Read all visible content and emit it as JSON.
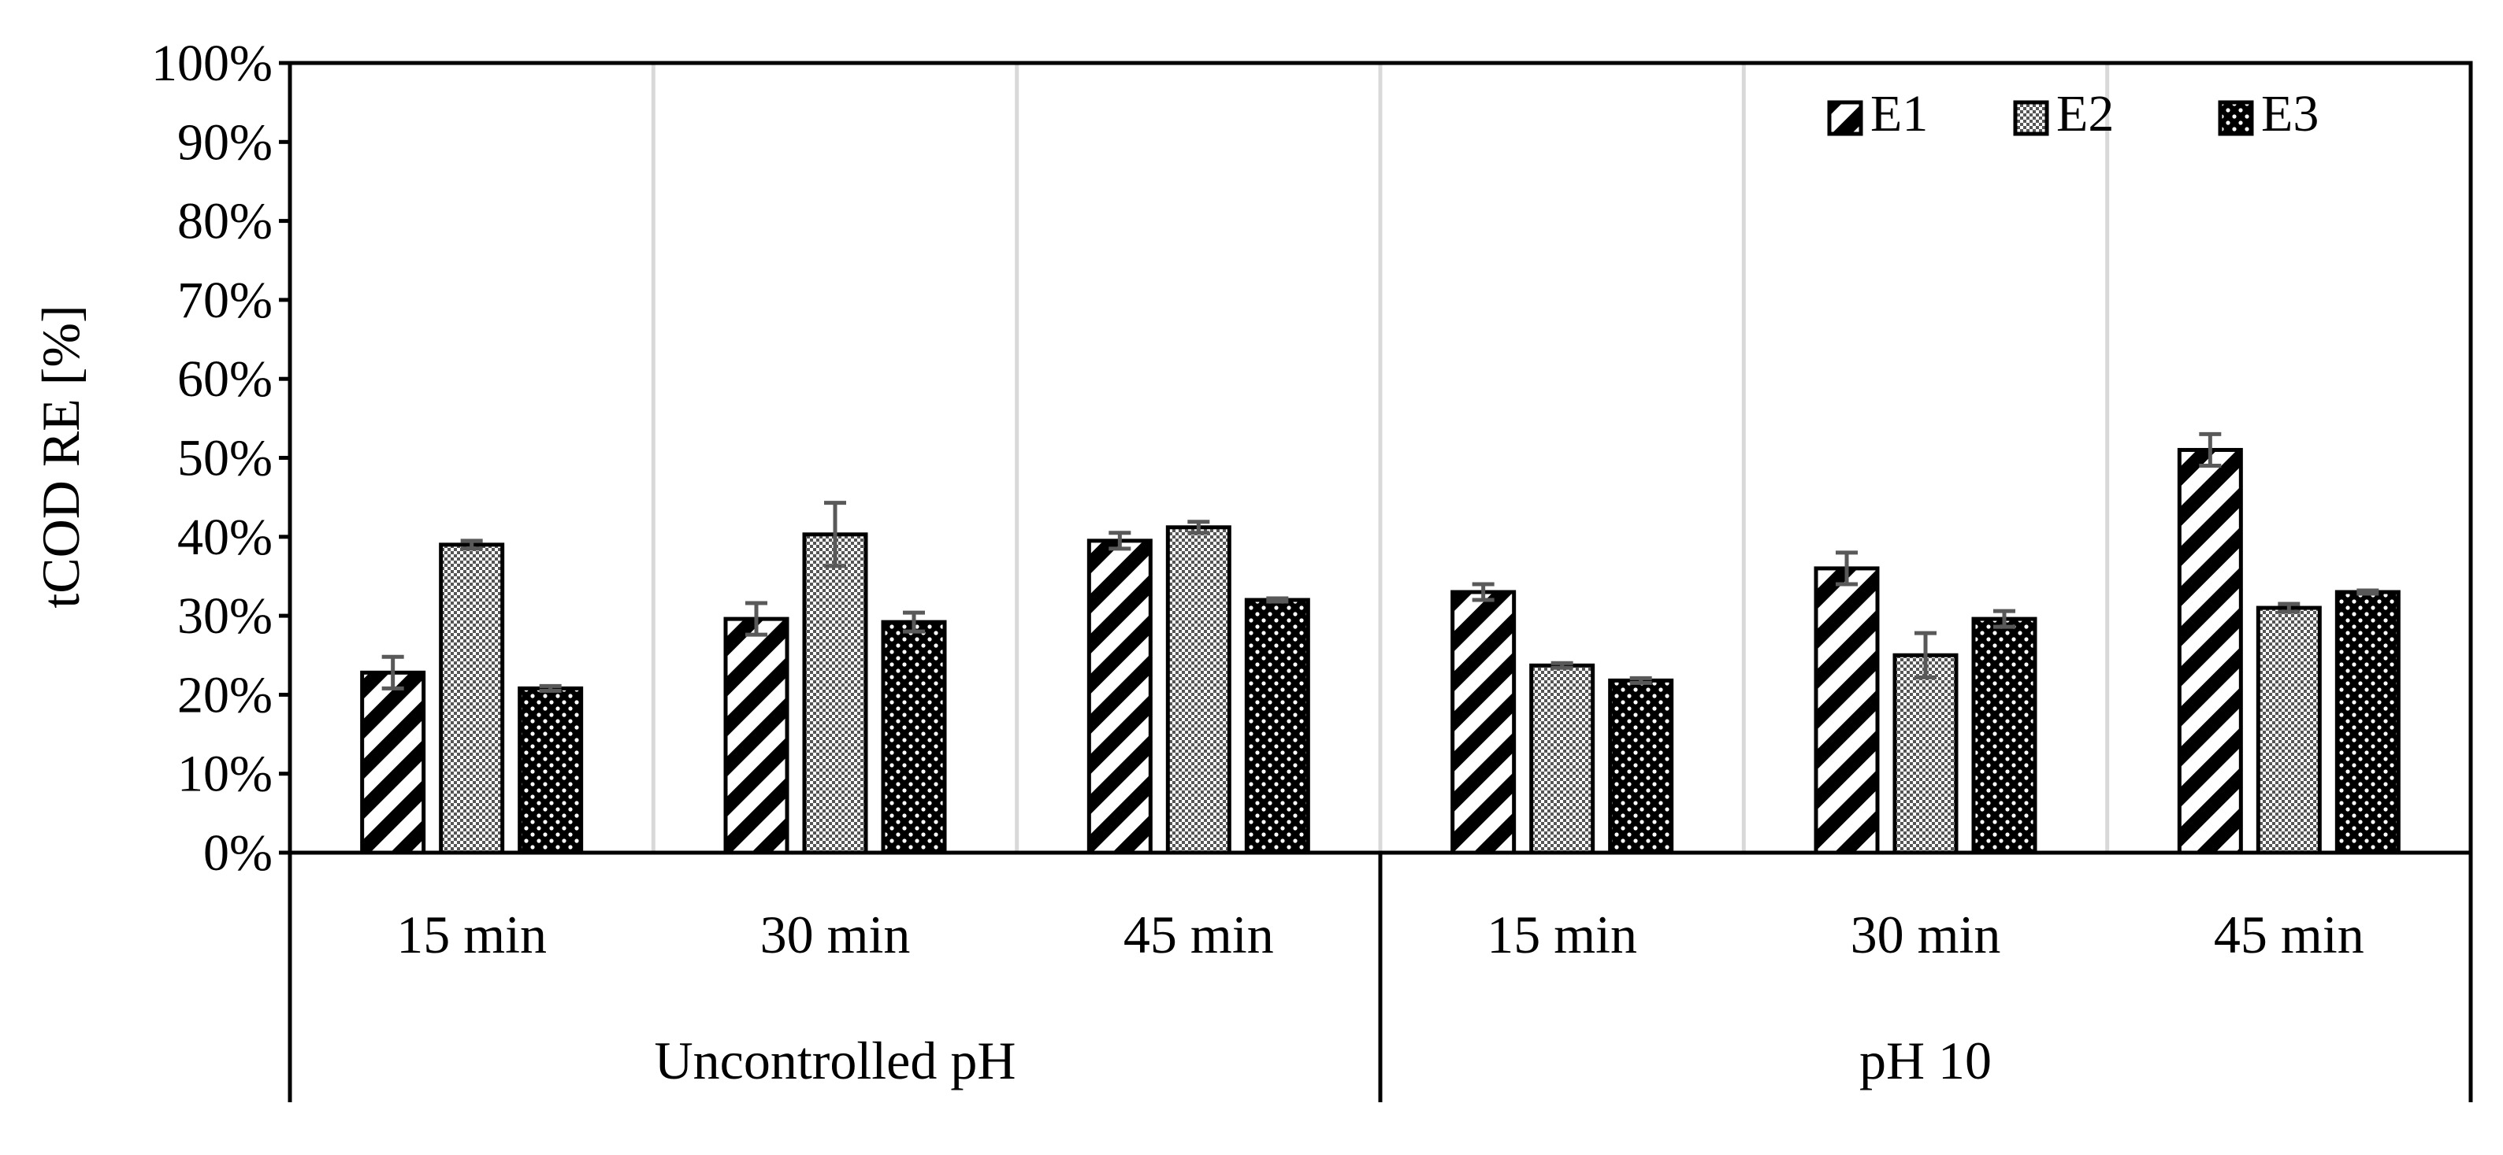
{
  "chart_data": {
    "type": "bar",
    "title": "",
    "ylabel": "tCOD RE [%]",
    "xlabel": "",
    "ylim": [
      0,
      100
    ],
    "yticks": [
      0,
      10,
      20,
      30,
      40,
      50,
      60,
      70,
      80,
      90,
      100
    ],
    "ytick_suffix": "%",
    "grid": false,
    "legend_position": "top-right",
    "groups": [
      {
        "label": "Uncontrolled pH",
        "categories": [
          "15 min",
          "30 min",
          "45 min"
        ]
      },
      {
        "label": "pH 10",
        "categories": [
          "15 min",
          "30 min",
          "45 min"
        ]
      }
    ],
    "categories": [
      "15 min",
      "30 min",
      "45 min",
      "15 min",
      "30 min",
      "45 min"
    ],
    "series": [
      {
        "name": "E1",
        "pattern": "diagonal-stripes",
        "values": [
          22.8,
          29.6,
          39.5,
          33.0,
          36.0,
          51.0
        ],
        "errors": [
          2.0,
          2.0,
          1.0,
          1.0,
          2.0,
          2.0
        ]
      },
      {
        "name": "E2",
        "pattern": "checker",
        "values": [
          39.0,
          40.3,
          41.2,
          23.7,
          25.0,
          31.0
        ],
        "errors": [
          0.5,
          4.0,
          0.7,
          0.3,
          2.8,
          0.5
        ]
      },
      {
        "name": "E3",
        "pattern": "dots",
        "values": [
          20.8,
          29.2,
          32.0,
          21.8,
          29.6,
          33.0
        ],
        "errors": [
          0.3,
          1.2,
          0.2,
          0.3,
          1.0,
          0.2
        ]
      }
    ]
  }
}
